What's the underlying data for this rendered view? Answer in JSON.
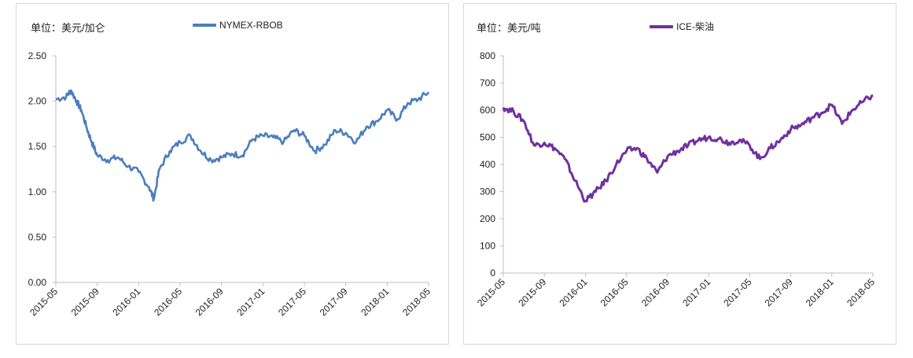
{
  "chart_data": [
    {
      "type": "line",
      "title": "",
      "unit_label": "单位：美元/加仑",
      "xlabel": "",
      "ylabel": "",
      "ylim": [
        0,
        2.5
      ],
      "y_ticks": [
        "0.00",
        "0.50",
        "1.00",
        "1.50",
        "2.00",
        "2.50"
      ],
      "x_ticks": [
        "2015-05",
        "2015-09",
        "2016-01",
        "2016-05",
        "2016-09",
        "2017-01",
        "2017-05",
        "2017-09",
        "2018-01",
        "2018-05"
      ],
      "grid": false,
      "legend_position": "top",
      "color": "#4a7ebb",
      "series": [
        {
          "name": "NYMEX-RBOB",
          "x": [
            "2015-05",
            "2015-06",
            "2015-06-15",
            "2015-07",
            "2015-07-15",
            "2015-08",
            "2015-08-15",
            "2015-09",
            "2015-10",
            "2015-11",
            "2015-12",
            "2016-01",
            "2016-02",
            "2016-02-15",
            "2016-03",
            "2016-04",
            "2016-05",
            "2016-06",
            "2016-07",
            "2016-08",
            "2016-09",
            "2016-10",
            "2016-11",
            "2016-12",
            "2017-01",
            "2017-02",
            "2017-03",
            "2017-04",
            "2017-05",
            "2017-06",
            "2017-07",
            "2017-08",
            "2017-09",
            "2017-10",
            "2017-11",
            "2017-12",
            "2018-01",
            "2018-02",
            "2018-03",
            "2018-04",
            "2018-05"
          ],
          "values": [
            2.02,
            2.05,
            2.12,
            2.0,
            1.9,
            1.7,
            1.55,
            1.4,
            1.35,
            1.38,
            1.28,
            1.22,
            1.05,
            0.92,
            1.25,
            1.45,
            1.55,
            1.62,
            1.45,
            1.35,
            1.38,
            1.42,
            1.4,
            1.58,
            1.62,
            1.6,
            1.55,
            1.68,
            1.62,
            1.45,
            1.52,
            1.68,
            1.65,
            1.55,
            1.72,
            1.78,
            1.9,
            1.8,
            1.98,
            2.02,
            2.1
          ]
        }
      ]
    },
    {
      "type": "line",
      "title": "",
      "unit_label": "单位：美元/吨",
      "xlabel": "",
      "ylabel": "",
      "ylim": [
        0,
        800
      ],
      "y_ticks": [
        "0",
        "100",
        "200",
        "300",
        "400",
        "500",
        "600",
        "700",
        "800"
      ],
      "x_ticks": [
        "2015-05",
        "2015-09",
        "2016-01",
        "2016-05",
        "2016-09",
        "2017-01",
        "2017-05",
        "2017-09",
        "2018-01",
        "2018-05"
      ],
      "grid": false,
      "legend_position": "top",
      "color": "#7030a0",
      "series": [
        {
          "name": "ICE-柴油",
          "x": [
            "2015-05",
            "2015-06",
            "2015-07",
            "2015-08",
            "2015-09",
            "2015-10",
            "2015-11",
            "2015-12",
            "2016-01",
            "2016-02",
            "2016-03",
            "2016-04",
            "2016-05",
            "2016-06",
            "2016-07",
            "2016-08",
            "2016-09",
            "2016-10",
            "2016-11",
            "2016-12",
            "2017-01",
            "2017-02",
            "2017-03",
            "2017-04",
            "2017-05",
            "2017-06",
            "2017-07",
            "2017-08",
            "2017-09",
            "2017-10",
            "2017-11",
            "2017-12",
            "2018-01",
            "2018-02",
            "2018-03",
            "2018-04",
            "2018-05"
          ],
          "values": [
            610,
            595,
            560,
            470,
            480,
            460,
            420,
            340,
            265,
            300,
            340,
            400,
            450,
            460,
            420,
            370,
            430,
            450,
            470,
            490,
            500,
            495,
            480,
            490,
            470,
            420,
            460,
            490,
            530,
            545,
            570,
            590,
            620,
            550,
            600,
            630,
            655
          ]
        }
      ]
    }
  ]
}
